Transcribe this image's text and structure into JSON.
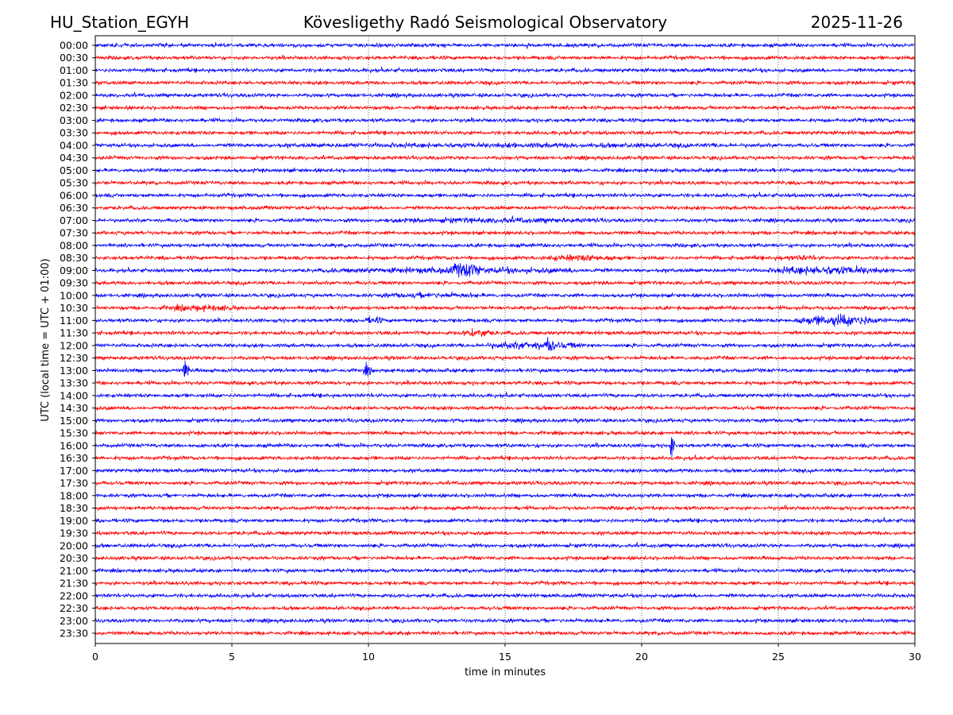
{
  "chart_data": {
    "type": "line",
    "title_left": "HU_Station_EGYH",
    "title": "Kövesligethy Radó Seismological Observatory",
    "title_right": "2025-11-26",
    "xlabel": "time in minutes",
    "ylabel": "UTC (local time = UTC + 01:00)",
    "xlim": [
      0,
      30
    ],
    "xticks": [
      "0",
      "5",
      "10",
      "15",
      "20",
      "25",
      "30"
    ],
    "grid": "vertical dotted at x ticks",
    "row_colors": [
      "#0000ff",
      "#ff0000"
    ],
    "rows": [
      "00:00",
      "00:30",
      "01:00",
      "01:30",
      "02:00",
      "02:30",
      "03:00",
      "03:30",
      "04:00",
      "04:30",
      "05:00",
      "05:30",
      "06:00",
      "06:30",
      "07:00",
      "07:30",
      "08:00",
      "08:30",
      "09:00",
      "09:30",
      "10:00",
      "10:30",
      "11:00",
      "11:30",
      "12:00",
      "12:30",
      "13:00",
      "13:30",
      "14:00",
      "14:30",
      "15:00",
      "15:30",
      "16:00",
      "16:30",
      "17:00",
      "17:30",
      "18:00",
      "18:30",
      "19:00",
      "19:30",
      "20:00",
      "20:30",
      "21:00",
      "21:30",
      "22:00",
      "22:30",
      "23:00",
      "23:30"
    ],
    "background_noise": 1.0,
    "events": [
      {
        "row": "04:00",
        "start_min": 0,
        "end_min": 30,
        "amplitude": 1.4
      },
      {
        "row": "07:00",
        "start_min": 9,
        "end_min": 20,
        "amplitude": 1.6
      },
      {
        "row": "08:30",
        "start_min": 16,
        "end_min": 19.5,
        "amplitude": 2.0
      },
      {
        "row": "08:30",
        "start_min": 24.5,
        "end_min": 27,
        "amplitude": 1.6
      },
      {
        "row": "09:00",
        "start_min": 7,
        "end_min": 20,
        "amplitude": 1.8
      },
      {
        "row": "09:00",
        "start_min": 12.9,
        "end_min": 14.2,
        "amplitude": 4.5
      },
      {
        "row": "09:00",
        "start_min": 24.5,
        "end_min": 29,
        "amplitude": 2.6
      },
      {
        "row": "10:00",
        "start_min": 9.5,
        "end_min": 15,
        "amplitude": 1.6
      },
      {
        "row": "10:30",
        "start_min": 2,
        "end_min": 5.5,
        "amplitude": 1.9
      },
      {
        "row": "11:00",
        "start_min": 9.8,
        "end_min": 10.6,
        "amplitude": 2.2
      },
      {
        "row": "11:00",
        "start_min": 25.5,
        "end_min": 29,
        "amplitude": 3.2
      },
      {
        "row": "11:30",
        "start_min": 13.4,
        "end_min": 14.6,
        "amplitude": 2.6
      },
      {
        "row": "12:00",
        "start_min": 14,
        "end_min": 18,
        "amplitude": 2.4
      },
      {
        "row": "12:00",
        "start_min": 16.5,
        "end_min": 16.8,
        "amplitude": 5.5
      },
      {
        "row": "13:00",
        "start_min": 3.2,
        "end_min": 3.45,
        "amplitude": 6
      },
      {
        "row": "13:00",
        "start_min": 9.8,
        "end_min": 10.1,
        "amplitude": 3.5
      },
      {
        "row": "16:00",
        "start_min": 21.0,
        "end_min": 21.2,
        "amplitude": 7
      }
    ]
  }
}
